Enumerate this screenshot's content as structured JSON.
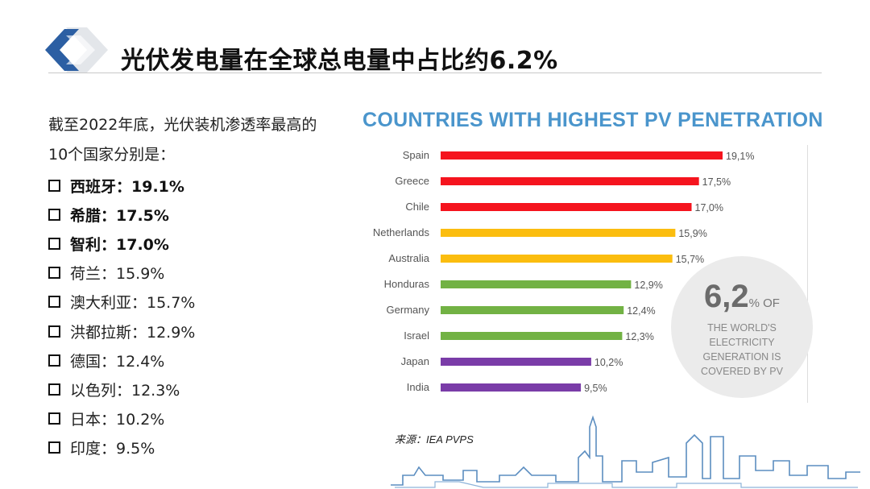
{
  "page_title": "光伏发电量在全球总电量中占比约6.2%",
  "intro": "截至2022年底，光伏装机渗透率最高的10个国家分别是：",
  "country_list": [
    {
      "text": "西班牙：19.1%",
      "bold": true
    },
    {
      "text": "希腊：17.5%",
      "bold": true
    },
    {
      "text": "智利：17.0%",
      "bold": true
    },
    {
      "text": "荷兰：15.9%",
      "bold": false
    },
    {
      "text": "澳大利亚：15.7%",
      "bold": false
    },
    {
      "text": "洪都拉斯：12.9%",
      "bold": false
    },
    {
      "text": "德国：12.4%",
      "bold": false
    },
    {
      "text": "以色列：12.3%",
      "bold": false
    },
    {
      "text": "日本：10.2%",
      "bold": false
    },
    {
      "text": "印度：9.5%",
      "bold": false
    }
  ],
  "callout": {
    "value": "6,2",
    "unit": "% OF",
    "text": "THE WORLD'S ELECTRICITY GENERATION IS COVERED BY PV"
  },
  "source": "来源：IEA PVPS",
  "chart_data": {
    "type": "bar",
    "orientation": "horizontal",
    "title": "COUNTRIES WITH HIGHEST PV PENETRATION",
    "categories": [
      "Spain",
      "Greece",
      "Chile",
      "Netherlands",
      "Australia",
      "Honduras",
      "Germany",
      "Israel",
      "Japan",
      "India"
    ],
    "values": [
      19.1,
      17.5,
      17.0,
      15.9,
      15.7,
      12.9,
      12.4,
      12.3,
      10.2,
      9.5
    ],
    "value_labels": [
      "19,1%",
      "17,5%",
      "17,0%",
      "15,9%",
      "15,7%",
      "12,9%",
      "12,4%",
      "12,3%",
      "10,2%",
      "9,5%"
    ],
    "bar_colors": [
      "#f5141e",
      "#f5141e",
      "#f5141e",
      "#fbbd0f",
      "#fbbd0f",
      "#72b244",
      "#72b244",
      "#72b244",
      "#7a3ca8",
      "#7a3ca8"
    ],
    "xlim": [
      0,
      19.1
    ],
    "grid": false,
    "legend": "none"
  }
}
